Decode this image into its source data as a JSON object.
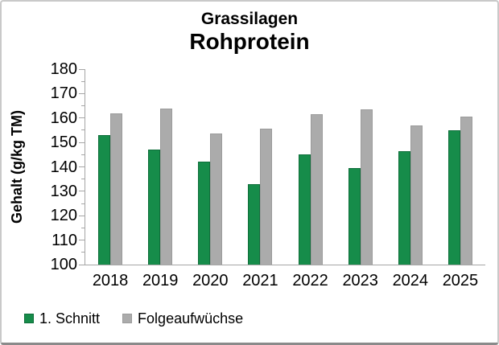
{
  "title": {
    "line1": "Grassilagen",
    "line2": "Rohprotein"
  },
  "colors": {
    "series1_fill": "#168C4A",
    "series1_border": "#0E6E3A",
    "series2_fill": "#ABABAB",
    "series2_border": "#9B9B9B",
    "axis": "#a6a6a6",
    "text": "#000000"
  },
  "chart_data": {
    "type": "bar",
    "title": "Grassilagen",
    "subtitle": "Rohprotein",
    "categories": [
      "2018",
      "2019",
      "2020",
      "2021",
      "2022",
      "2023",
      "2024",
      "2025"
    ],
    "series": [
      {
        "name": "1. Schnitt",
        "key": "1-schnitt",
        "color": "#168C4A",
        "border": "#0E6E3A",
        "values": [
          153,
          147,
          142,
          133,
          145,
          139.5,
          146.5,
          155
        ]
      },
      {
        "name": "Folgeaufwüchse",
        "key": "folgeaufwuechse",
        "color": "#ABABAB",
        "border": "#9B9B9B",
        "values": [
          162,
          164,
          153.5,
          155.5,
          161.5,
          163.5,
          157,
          160.5
        ]
      }
    ],
    "xlabel": "",
    "ylabel": "Gehalt (g/kg TM)",
    "ylim": [
      100,
      180
    ],
    "y_major_step": 10,
    "y_minor_step": 5,
    "grid": false,
    "legend_position": "bottom-left"
  }
}
